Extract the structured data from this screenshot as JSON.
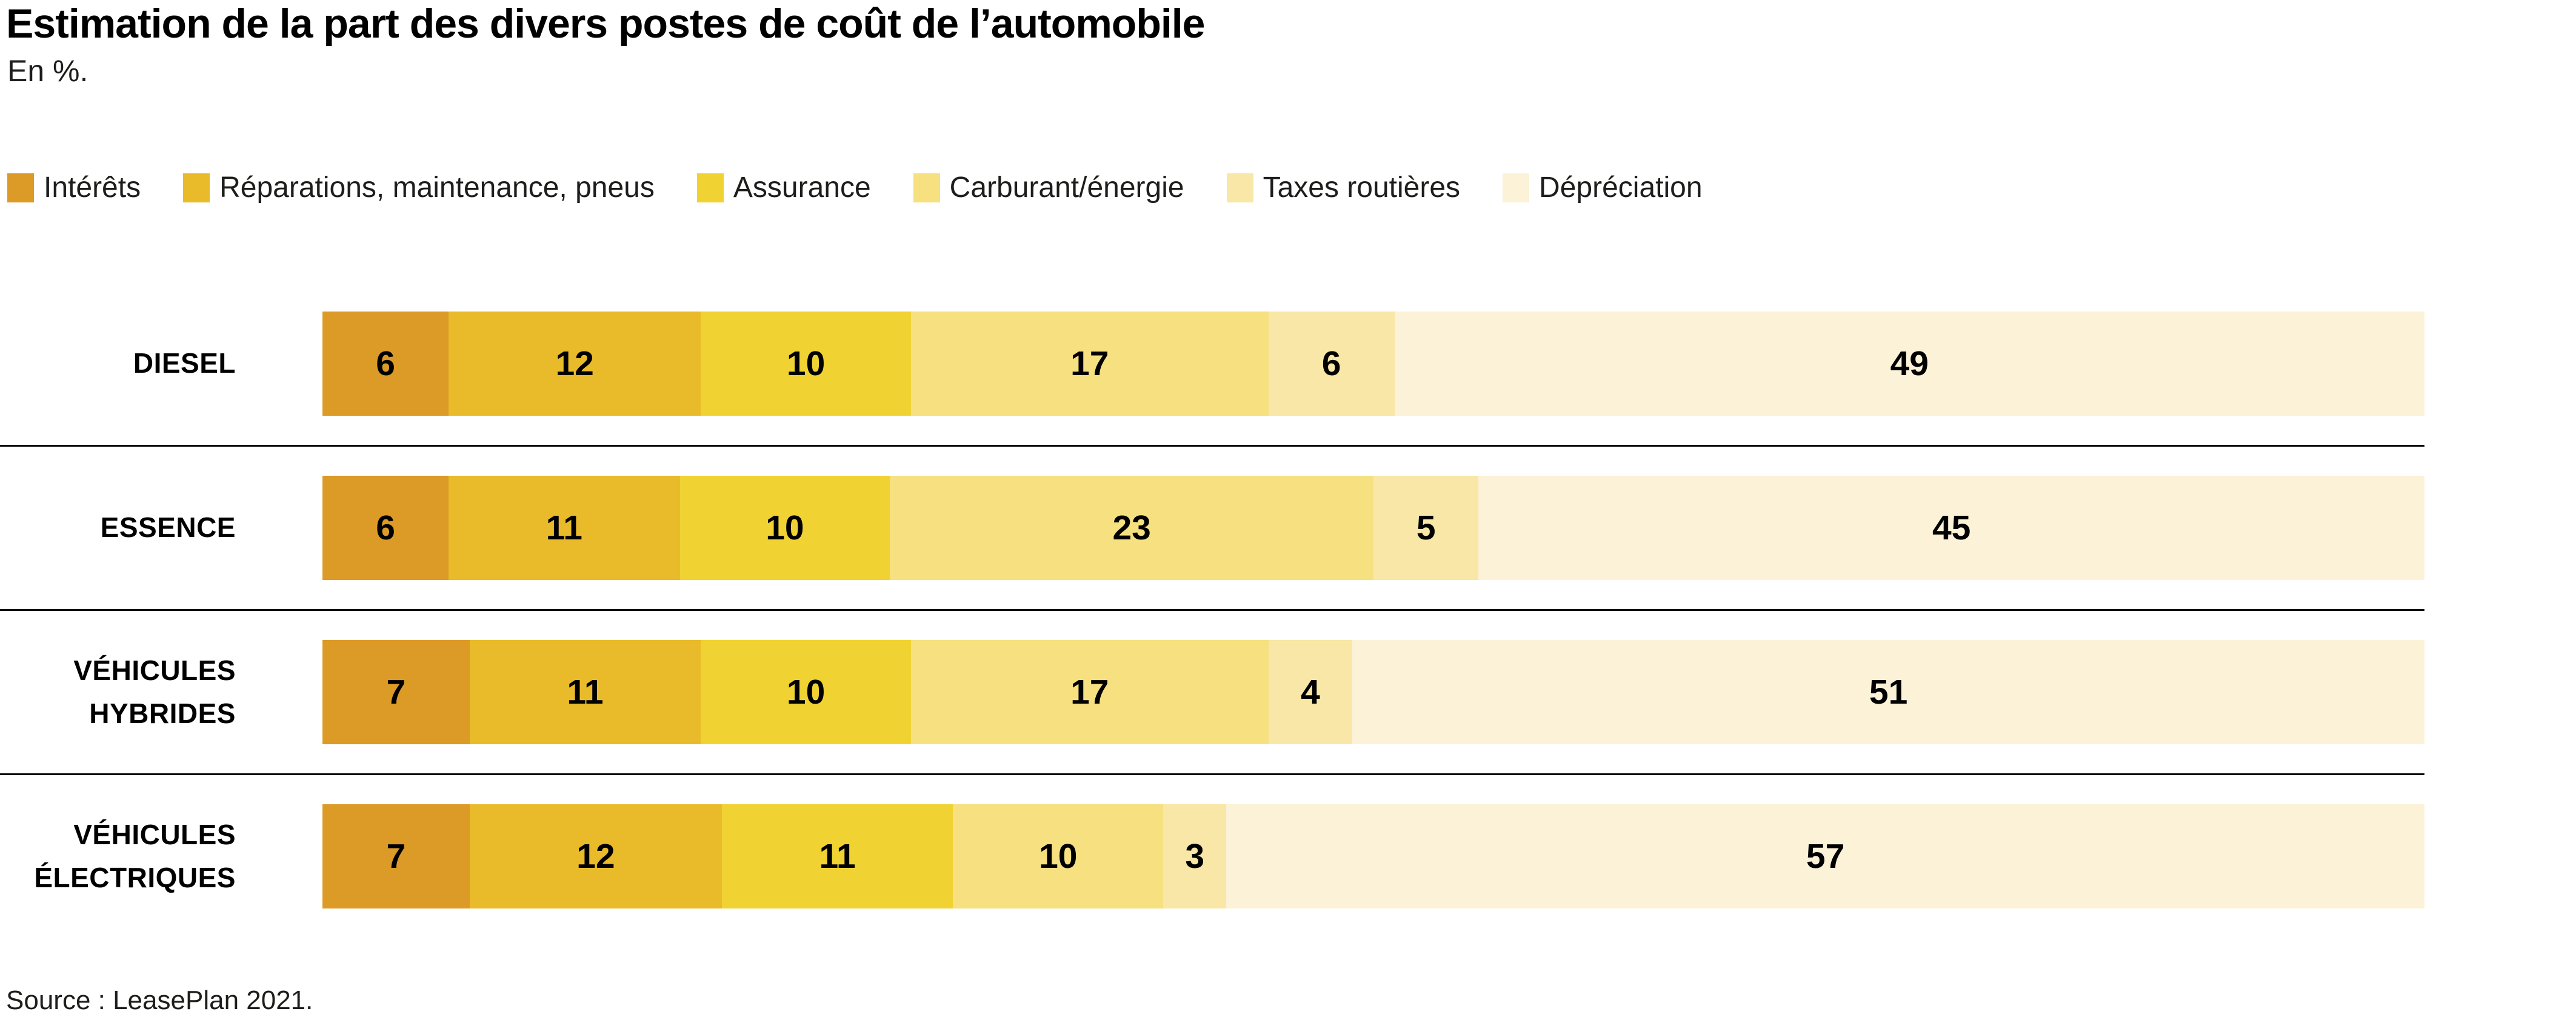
{
  "chart_data": {
    "type": "bar",
    "stacked": true,
    "orientation": "horizontal",
    "title": "Estimation de la part des divers postes de coût de l’automobile",
    "subtitle": "En %.",
    "unit": "%",
    "xlim": [
      0,
      100
    ],
    "grid": false,
    "legend_position": "top",
    "categories": [
      "DIESEL",
      "ESSENCE",
      "VÉHICULES HYBRIDES",
      "VÉHICULES ÉLECTRIQUES"
    ],
    "category_lines": [
      [
        "DIESEL"
      ],
      [
        "ESSENCE"
      ],
      [
        "VÉHICULES",
        "HYBRIDES"
      ],
      [
        "VÉHICULES",
        "ÉLECTRIQUES"
      ]
    ],
    "series": [
      {
        "name": "Intérêts",
        "color": "#DC9A26",
        "values": [
          6,
          6,
          7,
          7
        ]
      },
      {
        "name": "Réparations, maintenance, pneus",
        "color": "#E9BB2A",
        "values": [
          12,
          11,
          11,
          12
        ]
      },
      {
        "name": "Assurance",
        "color": "#F1D233",
        "values": [
          10,
          10,
          10,
          11
        ]
      },
      {
        "name": "Carburant/énergie",
        "color": "#F6E080",
        "values": [
          17,
          23,
          17,
          10
        ]
      },
      {
        "name": "Taxes routières",
        "color": "#F8E7A6",
        "values": [
          6,
          5,
          4,
          3
        ]
      },
      {
        "name": "Dépréciation",
        "color": "#FBF2D7",
        "values": [
          49,
          45,
          51,
          57
        ]
      }
    ]
  },
  "source": "Source : LeasePlan 2021.",
  "colors": {
    "separator": "#000000",
    "text": "#1d1d1b",
    "background": "#ffffff"
  }
}
